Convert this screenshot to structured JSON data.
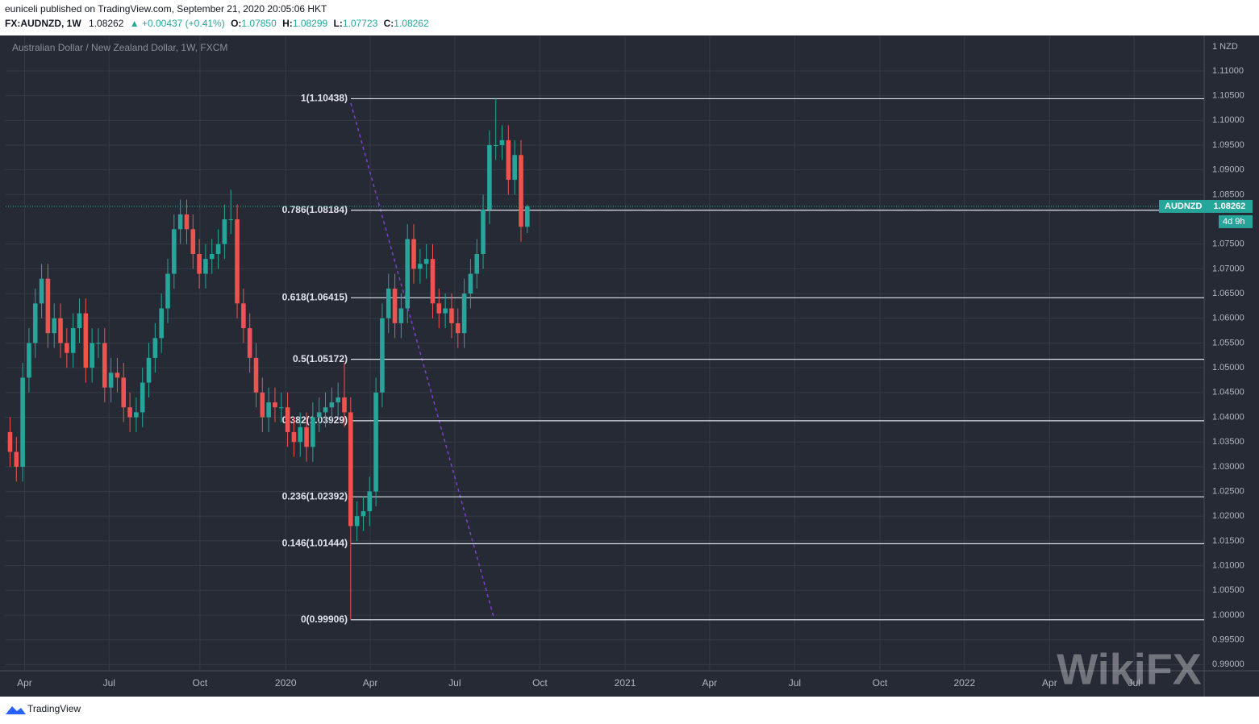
{
  "header": {
    "publisher": "euniceli published on TradingView.com, September 21, 2020 20:05:06 HKT",
    "symbol": "FX:AUDNZD, 1W",
    "last": "1.08262",
    "change": "▲ +0.00437 (+0.41%)",
    "ohlc": [
      "O:",
      "1.07850",
      "H:",
      "1.08299",
      "L:",
      "1.07723",
      "C:",
      "1.08262"
    ]
  },
  "footer": {
    "brand": "TradingView",
    "watermark": "WikiFX"
  },
  "chart_data": {
    "type": "candlestick",
    "title": "Australian Dollar / New Zealand Dollar, 1W, FXCM",
    "currency": "1 NZD",
    "up_color": "#26a69a",
    "down_color": "#ef5350",
    "grid": true,
    "x": [
      0.7,
      1.7,
      2.7,
      3.7,
      4.7,
      5.7,
      6.7,
      7.7,
      8.7,
      9.7,
      10.7,
      11.7,
      12.7,
      13.7,
      14.7,
      15.7,
      16.7,
      17.7,
      18.7,
      19.7,
      20.7,
      21.7,
      22.7,
      23.7,
      24.7,
      25.7,
      26.7,
      27.7,
      28.7,
      29.7,
      30.7,
      31.7,
      32.7,
      33.7,
      34.7,
      35.7,
      36.7,
      37.7,
      38.7,
      39.7,
      40.7,
      41.7,
      42.7,
      43.7,
      44.7,
      45.7,
      46.7,
      47.7,
      48.7,
      49.7,
      50.7,
      51.7,
      52.7,
      53.7,
      54.7,
      55.7,
      56.7,
      57.7,
      58.7,
      59.7,
      60.7,
      61.7,
      62.7,
      63.7,
      64.7,
      65.7,
      66.7,
      67.7,
      68.7,
      69.7,
      70.7,
      71.7,
      72.7,
      73.7,
      74.7,
      75.7,
      76.7,
      77.7,
      78.7,
      79.7,
      80.7,
      81.7,
      82.7
    ],
    "open": [
      1.037,
      1.033,
      1.03,
      1.048,
      1.055,
      1.063,
      1.068,
      1.057,
      1.06,
      1.055,
      1.053,
      1.058,
      1.061,
      1.05,
      1.055,
      1.055,
      1.046,
      1.049,
      1.048,
      1.042,
      1.04,
      1.041,
      1.047,
      1.052,
      1.056,
      1.062,
      1.069,
      1.078,
      1.081,
      1.078,
      1.073,
      1.069,
      1.072,
      1.073,
      1.075,
      1.08,
      1.08,
      1.063,
      1.058,
      1.052,
      1.045,
      1.04,
      1.043,
      1.042,
      1.042,
      1.037,
      1.035,
      1.038,
      1.034,
      1.04,
      1.041,
      1.042,
      1.043,
      1.044,
      1.041,
      1.018,
      1.02,
      1.021,
      1.025,
      1.045,
      1.06,
      1.066,
      1.059,
      1.062,
      1.076,
      1.07,
      1.071,
      1.072,
      1.063,
      1.061,
      1.062,
      1.059,
      1.057,
      1.065,
      1.069,
      1.073,
      1.082,
      1.095,
      1.095,
      1.096,
      1.088,
      1.093,
      1.0785
    ],
    "high": [
      1.04,
      1.036,
      1.051,
      1.058,
      1.066,
      1.071,
      1.071,
      1.063,
      1.063,
      1.058,
      1.061,
      1.064,
      1.064,
      1.058,
      1.058,
      1.058,
      1.052,
      1.052,
      1.051,
      1.045,
      1.044,
      1.05,
      1.055,
      1.059,
      1.065,
      1.072,
      1.081,
      1.084,
      1.084,
      1.081,
      1.076,
      1.075,
      1.076,
      1.078,
      1.083,
      1.086,
      1.083,
      1.066,
      1.061,
      1.055,
      1.048,
      1.046,
      1.046,
      1.045,
      1.045,
      1.04,
      1.041,
      1.041,
      1.043,
      1.044,
      1.045,
      1.046,
      1.047,
      1.051,
      1.044,
      1.023,
      1.024,
      1.028,
      1.048,
      1.063,
      1.069,
      1.069,
      1.065,
      1.079,
      1.079,
      1.074,
      1.075,
      1.075,
      1.066,
      1.065,
      1.065,
      1.062,
      1.068,
      1.072,
      1.076,
      1.085,
      1.098,
      1.10438,
      1.099,
      1.099,
      1.096,
      1.096,
      1.08299
    ],
    "low": [
      1.03,
      1.027,
      1.027,
      1.045,
      1.052,
      1.06,
      1.054,
      1.054,
      1.052,
      1.05,
      1.05,
      1.055,
      1.047,
      1.047,
      1.052,
      1.043,
      1.043,
      1.045,
      1.039,
      1.037,
      1.037,
      1.038,
      1.044,
      1.049,
      1.053,
      1.059,
      1.066,
      1.075,
      1.075,
      1.07,
      1.066,
      1.066,
      1.069,
      1.07,
      1.072,
      1.077,
      1.06,
      1.055,
      1.049,
      1.042,
      1.037,
      1.037,
      1.039,
      1.039,
      1.034,
      1.032,
      1.032,
      1.031,
      1.031,
      1.037,
      1.038,
      1.039,
      1.04,
      1.038,
      0.99906,
      1.015,
      1.017,
      1.018,
      1.022,
      1.042,
      1.057,
      1.056,
      1.056,
      1.059,
      1.067,
      1.067,
      1.068,
      1.06,
      1.058,
      1.058,
      1.056,
      1.054,
      1.054,
      1.062,
      1.066,
      1.07,
      1.079,
      1.092,
      1.092,
      1.085,
      1.085,
      1.0755,
      1.07723
    ],
    "close": [
      1.033,
      1.03,
      1.048,
      1.055,
      1.063,
      1.068,
      1.057,
      1.06,
      1.055,
      1.053,
      1.058,
      1.061,
      1.05,
      1.055,
      1.055,
      1.046,
      1.049,
      1.048,
      1.042,
      1.04,
      1.041,
      1.047,
      1.052,
      1.056,
      1.062,
      1.069,
      1.078,
      1.081,
      1.078,
      1.073,
      1.069,
      1.072,
      1.073,
      1.075,
      1.08,
      1.08,
      1.063,
      1.058,
      1.052,
      1.045,
      1.04,
      1.043,
      1.042,
      1.042,
      1.037,
      1.035,
      1.038,
      1.034,
      1.04,
      1.041,
      1.042,
      1.043,
      1.044,
      1.041,
      1.018,
      1.02,
      1.021,
      1.025,
      1.045,
      1.06,
      1.066,
      1.059,
      1.062,
      1.076,
      1.07,
      1.071,
      1.072,
      1.063,
      1.061,
      1.062,
      1.059,
      1.057,
      1.065,
      1.069,
      1.073,
      1.082,
      1.095,
      1.095,
      1.096,
      1.088,
      1.093,
      1.0785,
      1.08262
    ],
    "xlim": [
      0,
      190
    ],
    "xticks": [
      {
        "value": 3,
        "label": "Apr"
      },
      {
        "value": 16.4,
        "label": "Jul"
      },
      {
        "value": 30.8,
        "label": "Oct"
      },
      {
        "value": 44.4,
        "label": "2020"
      },
      {
        "value": 57.8,
        "label": "Apr"
      },
      {
        "value": 71.2,
        "label": "Jul"
      },
      {
        "value": 84.7,
        "label": "Oct"
      },
      {
        "value": 98.2,
        "label": "2021"
      },
      {
        "value": 111.6,
        "label": "Apr"
      },
      {
        "value": 125.1,
        "label": "Jul"
      },
      {
        "value": 138.6,
        "label": "Oct"
      },
      {
        "value": 152,
        "label": "2022"
      },
      {
        "value": 165.5,
        "label": "Apr"
      },
      {
        "value": 178.9,
        "label": "Jul"
      }
    ],
    "ylim": [
      0.98875,
      1.117
    ],
    "yticks": [
      {
        "value": 1.11,
        "label": "1.11000"
      },
      {
        "value": 1.105,
        "label": "1.10500"
      },
      {
        "value": 1.1,
        "label": "1.10000"
      },
      {
        "value": 1.095,
        "label": "1.09500"
      },
      {
        "value": 1.09,
        "label": "1.09000"
      },
      {
        "value": 1.085,
        "label": "1.08500"
      },
      {
        "value": 1.075,
        "label": "1.07500"
      },
      {
        "value": 1.07,
        "label": "1.07000"
      },
      {
        "value": 1.065,
        "label": "1.06500"
      },
      {
        "value": 1.06,
        "label": "1.06000"
      },
      {
        "value": 1.055,
        "label": "1.05500"
      },
      {
        "value": 1.05,
        "label": "1.05000"
      },
      {
        "value": 1.045,
        "label": "1.04500"
      },
      {
        "value": 1.04,
        "label": "1.04000"
      },
      {
        "value": 1.035,
        "label": "1.03500"
      },
      {
        "value": 1.03,
        "label": "1.03000"
      },
      {
        "value": 1.025,
        "label": "1.02500"
      },
      {
        "value": 1.02,
        "label": "1.02000"
      },
      {
        "value": 1.015,
        "label": "1.01500"
      },
      {
        "value": 1.01,
        "label": "1.01000"
      },
      {
        "value": 1.005,
        "label": "1.00500"
      },
      {
        "value": 1.0,
        "label": "1.00000"
      },
      {
        "value": 0.995,
        "label": "0.99500"
      },
      {
        "value": 0.99,
        "label": "0.99000"
      }
    ],
    "fib_levels": [
      {
        "value": 1.10438,
        "label": "1(1.10438)"
      },
      {
        "value": 1.08184,
        "label": "0.786(1.08184)"
      },
      {
        "value": 1.06415,
        "label": "0.618(1.06415)"
      },
      {
        "value": 1.05172,
        "label": "0.5(1.05172)"
      },
      {
        "value": 1.03929,
        "label": "0.382(1.03929)"
      },
      {
        "value": 1.02392,
        "label": "0.236(1.02392)"
      },
      {
        "value": 1.01444,
        "label": "0.146(1.01444)"
      },
      {
        "value": 0.99906,
        "label": "0(0.99906)"
      }
    ],
    "last_price": {
      "value": 1.08262,
      "label": "1.08262",
      "symbol": "AUDNZD",
      "countdown": "4d 9h"
    }
  }
}
